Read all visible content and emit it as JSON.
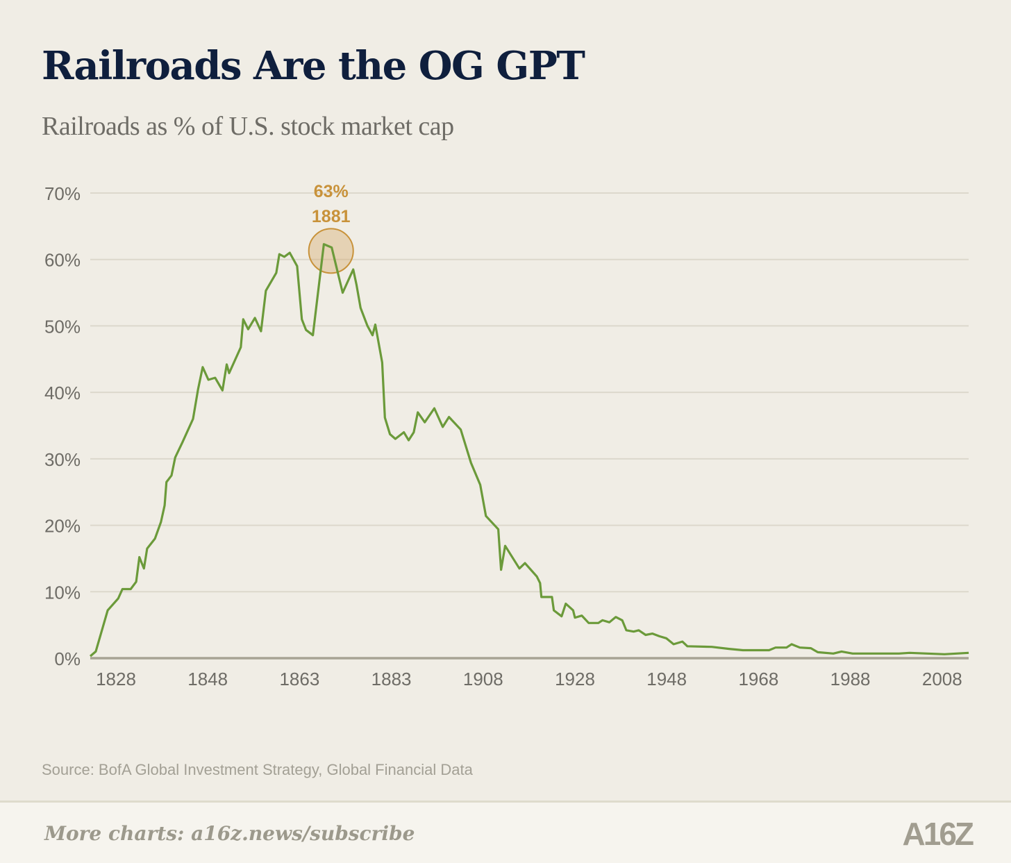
{
  "title": "Railroads Are the OG GPT",
  "subtitle": "Railroads as % of U.S. stock market cap",
  "source": "Source: BofA Global Investment Strategy, Global Financial Data",
  "footer": {
    "cta": "More charts: a16z.news/subscribe",
    "logo": "A16Z"
  },
  "colors": {
    "line": "#6b9a3a",
    "annotation": "#c8923a",
    "title": "#0f1f3d",
    "grid": "#dcd8cc",
    "background": "#f0ede5"
  },
  "chart_data": {
    "type": "line",
    "title": "Railroads Are the OG GPT",
    "subtitle": "Railroads as % of U.S. stock market cap",
    "xlabel": "",
    "ylabel": "",
    "ylim": [
      0,
      70
    ],
    "yticks": [
      0,
      10,
      20,
      30,
      40,
      50,
      60,
      70
    ],
    "ytick_labels": [
      "0%",
      "10%",
      "20%",
      "30%",
      "40%",
      "50%",
      "60%",
      "70%"
    ],
    "xticks": [
      1828,
      1848,
      1863,
      1883,
      1908,
      1928,
      1948,
      1968,
      1988,
      2008
    ],
    "xtick_labels": [
      "1828",
      "1848",
      "1863",
      "1883",
      "1908",
      "1928",
      "1948",
      "1968",
      "1988",
      "2008"
    ],
    "grid": "horizontal",
    "annotation": {
      "value_label": "63%",
      "year_label": "1881",
      "x": 1869.1,
      "y": 61.5
    },
    "points": [
      [
        1822.4,
        0.3
      ],
      [
        1823.6,
        1.0
      ],
      [
        1826.2,
        7.2
      ],
      [
        1828.5,
        9.0
      ],
      [
        1829.4,
        10.4
      ],
      [
        1831.2,
        10.4
      ],
      [
        1832.4,
        11.5
      ],
      [
        1833.1,
        15.2
      ],
      [
        1834.1,
        13.5
      ],
      [
        1834.8,
        16.5
      ],
      [
        1836.5,
        18.0
      ],
      [
        1837.8,
        20.5
      ],
      [
        1838.6,
        23.0
      ],
      [
        1839.0,
        26.5
      ],
      [
        1840.1,
        27.5
      ],
      [
        1840.9,
        30.2
      ],
      [
        1842.5,
        32.5
      ],
      [
        1844.8,
        36.0
      ],
      [
        1845.9,
        40.5
      ],
      [
        1846.9,
        43.8
      ],
      [
        1848.1,
        41.9
      ],
      [
        1849.2,
        42.2
      ],
      [
        1850.4,
        40.3
      ],
      [
        1851.1,
        44.2
      ],
      [
        1851.5,
        42.9
      ],
      [
        1853.4,
        46.8
      ],
      [
        1853.8,
        51.0
      ],
      [
        1854.6,
        49.5
      ],
      [
        1855.7,
        51.2
      ],
      [
        1856.7,
        49.2
      ],
      [
        1857.5,
        55.3
      ],
      [
        1859.2,
        58.0
      ],
      [
        1859.7,
        60.8
      ],
      [
        1860.5,
        60.4
      ],
      [
        1861.4,
        61.0
      ],
      [
        1862.6,
        59.0
      ],
      [
        1863.5,
        51.0
      ],
      [
        1864.4,
        49.4
      ],
      [
        1865.9,
        48.6
      ],
      [
        1868.3,
        62.3
      ],
      [
        1870.0,
        61.8
      ],
      [
        1872.4,
        55.0
      ],
      [
        1874.7,
        58.5
      ],
      [
        1875.4,
        56.2
      ],
      [
        1876.3,
        52.7
      ],
      [
        1877.8,
        50.0
      ],
      [
        1878.9,
        48.6
      ],
      [
        1879.5,
        50.2
      ],
      [
        1881.0,
        44.5
      ],
      [
        1881.6,
        36.2
      ],
      [
        1882.7,
        33.7
      ],
      [
        1884.1,
        33.0
      ],
      [
        1886.4,
        34.0
      ],
      [
        1887.7,
        32.8
      ],
      [
        1889.1,
        34.0
      ],
      [
        1890.2,
        37.0
      ],
      [
        1892.1,
        35.5
      ],
      [
        1894.7,
        37.6
      ],
      [
        1897.0,
        34.8
      ],
      [
        1898.7,
        36.3
      ],
      [
        1901.9,
        34.4
      ],
      [
        1904.7,
        29.4
      ],
      [
        1907.2,
        26.1
      ],
      [
        1908.6,
        21.4
      ],
      [
        1911.3,
        19.4
      ],
      [
        1911.9,
        13.3
      ],
      [
        1912.8,
        16.9
      ],
      [
        1915.9,
        13.5
      ],
      [
        1917.1,
        14.3
      ],
      [
        1919.7,
        12.3
      ],
      [
        1920.4,
        11.3
      ],
      [
        1920.7,
        9.2
      ],
      [
        1923.0,
        9.2
      ],
      [
        1923.4,
        7.2
      ],
      [
        1925.1,
        6.3
      ],
      [
        1926.0,
        8.2
      ],
      [
        1927.6,
        7.2
      ],
      [
        1928.0,
        6.1
      ],
      [
        1929.5,
        6.4
      ],
      [
        1931.0,
        5.3
      ],
      [
        1933.1,
        5.3
      ],
      [
        1934.0,
        5.7
      ],
      [
        1935.5,
        5.4
      ],
      [
        1936.9,
        6.2
      ],
      [
        1938.3,
        5.7
      ],
      [
        1939.2,
        4.2
      ],
      [
        1940.8,
        4.0
      ],
      [
        1941.9,
        4.2
      ],
      [
        1943.4,
        3.5
      ],
      [
        1944.9,
        3.7
      ],
      [
        1946.4,
        3.3
      ],
      [
        1947.9,
        3.0
      ],
      [
        1949.5,
        2.1
      ],
      [
        1951.4,
        2.5
      ],
      [
        1952.5,
        1.8
      ],
      [
        1957.8,
        1.7
      ],
      [
        1961.6,
        1.4
      ],
      [
        1964.6,
        1.2
      ],
      [
        1970.3,
        1.2
      ],
      [
        1971.7,
        1.6
      ],
      [
        1974.1,
        1.6
      ],
      [
        1975.2,
        2.1
      ],
      [
        1977.0,
        1.6
      ],
      [
        1979.4,
        1.5
      ],
      [
        1980.9,
        0.9
      ],
      [
        1984.3,
        0.7
      ],
      [
        1986.1,
        1.0
      ],
      [
        1988.5,
        0.7
      ],
      [
        1998.6,
        0.7
      ],
      [
        2000.9,
        0.8
      ],
      [
        2008.5,
        0.6
      ],
      [
        2013.8,
        0.8
      ]
    ]
  }
}
